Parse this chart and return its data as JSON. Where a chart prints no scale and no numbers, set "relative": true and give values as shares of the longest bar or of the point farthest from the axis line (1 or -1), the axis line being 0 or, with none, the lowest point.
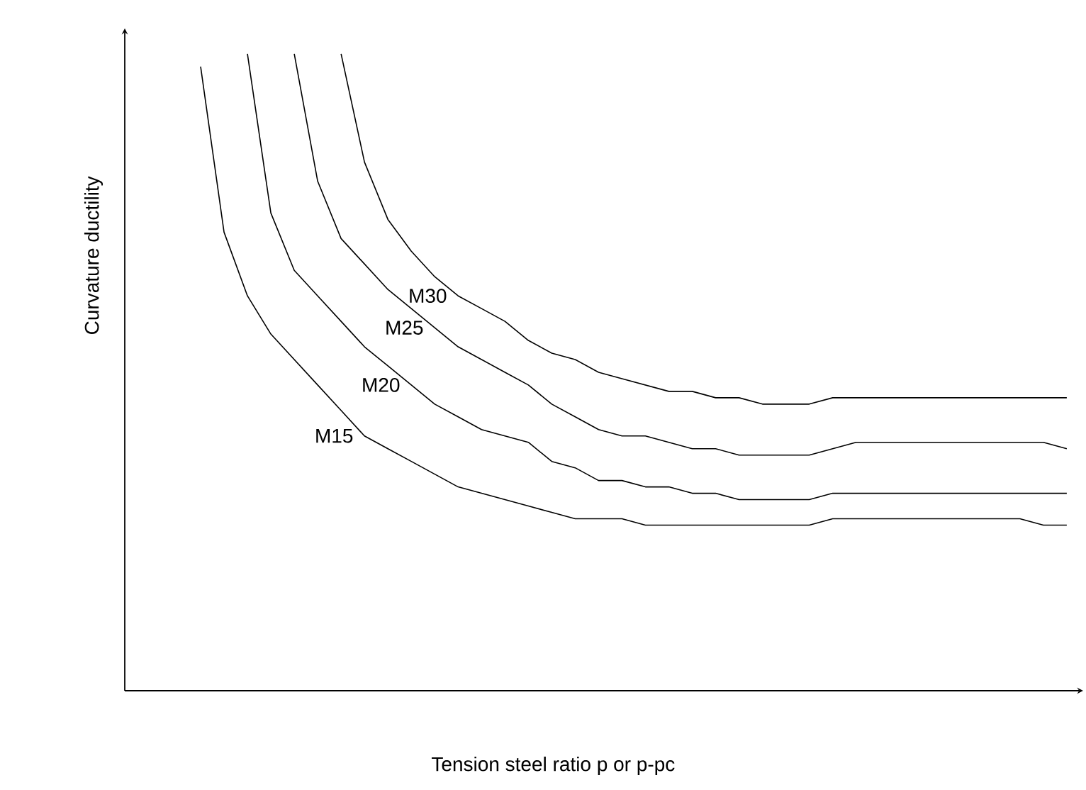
{
  "chart_data": {
    "type": "line",
    "relative": true,
    "xlabel": "Tension steel ratio p or p-pc",
    "ylabel": "Curvature ductility",
    "categories": [
      null,
      null,
      null,
      null,
      null,
      null,
      null,
      null,
      null,
      null,
      null,
      null,
      null,
      null,
      null,
      null,
      null,
      null,
      null,
      null,
      null,
      null,
      null,
      null,
      null,
      null,
      null,
      null,
      null,
      null,
      null,
      null,
      null,
      null,
      null,
      null,
      null,
      null
    ],
    "series": [
      {
        "name": "M15",
        "color": "#000000",
        "values": [
          0.98,
          0.72,
          0.62,
          0.56,
          0.52,
          0.48,
          0.44,
          0.4,
          0.38,
          0.36,
          0.34,
          0.32,
          0.31,
          0.3,
          0.29,
          0.28,
          0.27,
          0.27,
          0.27,
          0.26,
          0.26,
          0.26,
          0.26,
          0.26,
          0.26,
          0.26,
          0.26,
          0.27,
          0.27,
          0.27,
          0.27,
          0.27,
          0.27,
          0.27,
          0.27,
          0.27,
          0.26,
          0.26
        ]
      },
      {
        "name": "M20",
        "color": "#000000",
        "values": [
          null,
          null,
          1.0,
          0.75,
          0.66,
          0.62,
          0.58,
          0.54,
          0.51,
          0.48,
          0.45,
          0.43,
          0.41,
          0.4,
          0.39,
          0.36,
          0.35,
          0.33,
          0.33,
          0.32,
          0.32,
          0.31,
          0.31,
          0.3,
          0.3,
          0.3,
          0.3,
          0.31,
          0.31,
          0.31,
          0.31,
          0.31,
          0.31,
          0.31,
          0.31,
          0.31,
          0.31,
          0.31
        ]
      },
      {
        "name": "M25",
        "color": "#000000",
        "values": [
          null,
          null,
          null,
          null,
          1.0,
          0.8,
          0.71,
          0.67,
          0.63,
          0.6,
          0.57,
          0.54,
          0.52,
          0.5,
          0.48,
          0.45,
          0.43,
          0.41,
          0.4,
          0.4,
          0.39,
          0.38,
          0.38,
          0.37,
          0.37,
          0.37,
          0.37,
          0.38,
          0.39,
          0.39,
          0.39,
          0.39,
          0.39,
          0.39,
          0.39,
          0.39,
          0.39,
          0.38
        ]
      },
      {
        "name": "M30",
        "color": "#000000",
        "values": [
          null,
          null,
          null,
          null,
          null,
          null,
          1.0,
          0.83,
          0.74,
          0.69,
          0.65,
          0.62,
          0.6,
          0.58,
          0.55,
          0.53,
          0.52,
          0.5,
          0.49,
          0.48,
          0.47,
          0.47,
          0.46,
          0.46,
          0.45,
          0.45,
          0.45,
          0.46,
          0.46,
          0.46,
          0.46,
          0.46,
          0.46,
          0.46,
          0.46,
          0.46,
          0.46,
          0.46
        ]
      }
    ]
  }
}
